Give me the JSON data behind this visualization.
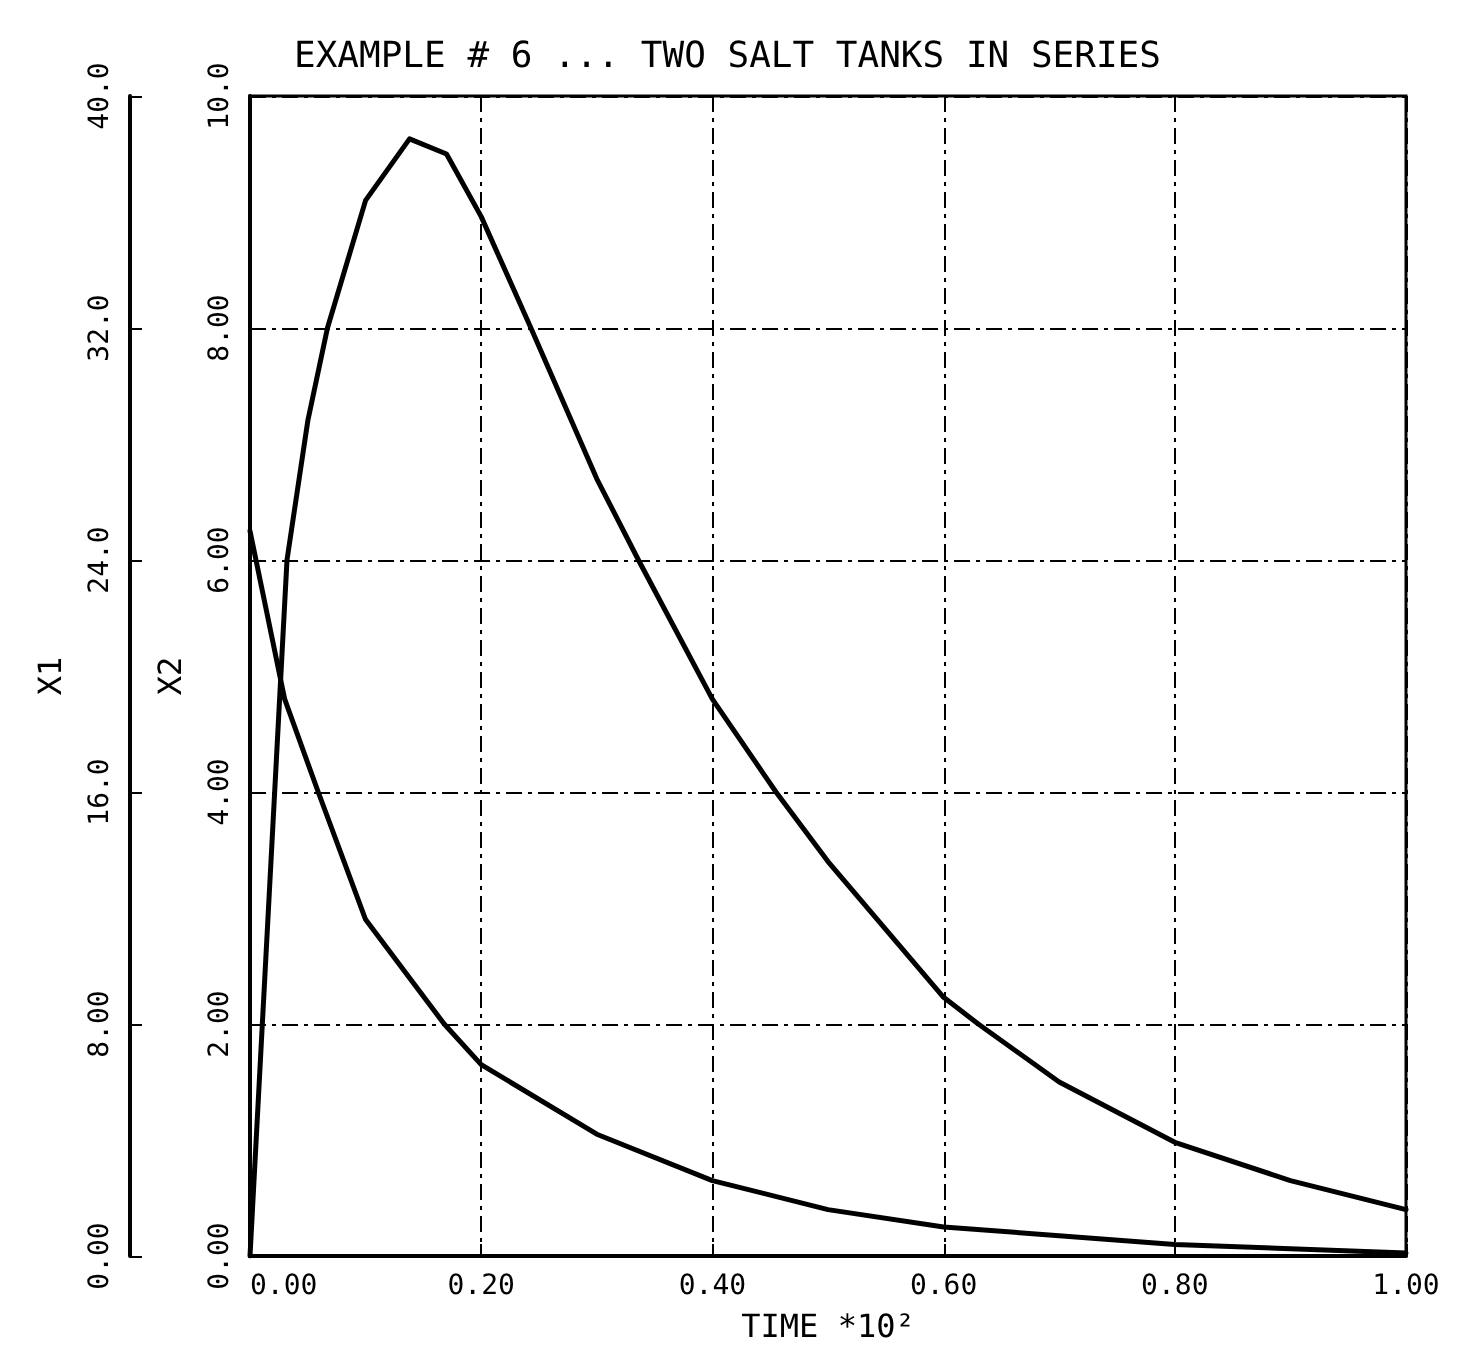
{
  "chart_data": {
    "type": "line",
    "title": "EXAMPLE # 6 ... TWO SALT TANKS IN SERIES",
    "xlabel": "TIME *10²",
    "ylabel": "X1",
    "y2label": "X2",
    "xlim": [
      0,
      1
    ],
    "xticks": [
      {
        "value": 0,
        "label": "0.00"
      },
      {
        "value": 0.2,
        "label": "0.20"
      },
      {
        "value": 0.4,
        "label": "0.40"
      },
      {
        "value": 0.6,
        "label": "0.60"
      },
      {
        "value": 0.8,
        "label": "0.80"
      },
      {
        "value": 1,
        "label": "1.00"
      }
    ],
    "ylim": [
      0,
      40
    ],
    "yticks": [
      {
        "value": 0,
        "label": "0.00"
      },
      {
        "value": 8,
        "label": "8.00"
      },
      {
        "value": 16,
        "label": "16.0"
      },
      {
        "value": 24,
        "label": "24.0"
      },
      {
        "value": 32,
        "label": "32.0"
      },
      {
        "value": 40,
        "label": "40.0"
      }
    ],
    "y2lim": [
      0,
      10
    ],
    "y2ticks": [
      {
        "value": 0,
        "label": "0.00"
      },
      {
        "value": 2,
        "label": "2.00"
      },
      {
        "value": 4,
        "label": "4.00"
      },
      {
        "value": 6,
        "label": "6.00"
      },
      {
        "value": 8,
        "label": "8.00"
      },
      {
        "value": 10,
        "label": "10.0"
      }
    ],
    "grid": true,
    "line_style": "solid",
    "series": [
      {
        "color": "#000000",
        "axis": "y",
        "x": [
          0,
          0.03,
          0.059,
          0.1,
          0.168,
          0.2,
          0.3,
          0.4,
          0.5,
          0.6,
          0.8,
          1.0
        ],
        "values": [
          25,
          19.2,
          16,
          11.6,
          8,
          6.6,
          4.2,
          2.6,
          1.6,
          1.0,
          0.4,
          0.1
        ]
      },
      {
        "color": "#000000",
        "axis": "y2",
        "x": [
          0,
          0.032,
          0.05,
          0.067,
          0.1,
          0.138,
          0.17,
          0.2,
          0.243,
          0.3,
          0.336,
          0.4,
          0.455,
          0.5,
          0.6,
          0.63,
          0.7,
          0.8,
          0.9,
          1.0
        ],
        "values": [
          0,
          6,
          7.2,
          8,
          9.1,
          9.63,
          9.5,
          8.96,
          8,
          6.7,
          6,
          4.8,
          4,
          3.4,
          2.23,
          2,
          1.5,
          0.98,
          0.65,
          0.4
        ]
      }
    ]
  }
}
